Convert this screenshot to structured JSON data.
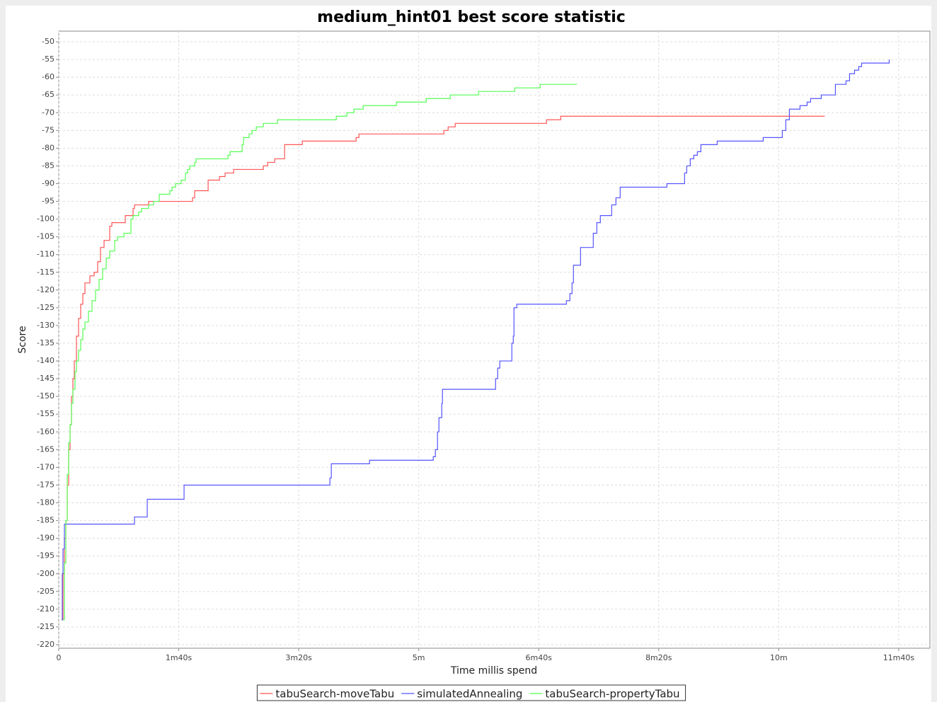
{
  "chart_data": {
    "type": "line",
    "step": true,
    "title": "medium_hint01 best score statistic",
    "xlabel": "Time millis spend",
    "ylabel": "Score",
    "grid": true,
    "legend": "bottom",
    "xlim": [
      0,
      726000
    ],
    "ylim": [
      -221,
      -47
    ],
    "xticks": [
      0,
      {
        "value": 100000,
        "label": "1m40s"
      },
      {
        "value": 200000,
        "label": "3m20s"
      },
      {
        "value": 300000,
        "label": "5m"
      },
      {
        "value": 400000,
        "label": "6m40s"
      },
      {
        "value": 500000,
        "label": "8m20s"
      },
      {
        "value": 600000,
        "label": "10m"
      },
      {
        "value": 700000,
        "label": "11m40s"
      }
    ],
    "yticks": [
      -50,
      -55,
      -60,
      -65,
      -70,
      -75,
      -80,
      -85,
      -90,
      -95,
      -100,
      -105,
      -110,
      -115,
      -120,
      -125,
      -130,
      -135,
      -140,
      -145,
      -150,
      -155,
      -160,
      -165,
      -170,
      -175,
      -180,
      -185,
      -190,
      -195,
      -200,
      -205,
      -210,
      -215,
      -220
    ],
    "series": [
      {
        "name": "tabuSearch-moveTabu",
        "color": "#ff5555",
        "x": [
          2360,
          3540,
          4720,
          5900,
          7080,
          8260,
          9440,
          10620,
          11800,
          12980,
          14750,
          16520,
          18290,
          20060,
          21830,
          25960,
          29500,
          32450,
          34810,
          37760,
          42480,
          44250,
          55460,
          61950,
          63130,
          74930,
          111510,
          113280,
          124490,
          133930,
          138650,
          145730,
          170510,
          174050,
          179950,
          188210,
          202960,
          247800,
          250160,
          320960,
          324500,
          330400,
          406510,
          418310,
          638380
        ],
        "values": [
          -213,
          -200,
          -190,
          -185,
          -175,
          -165,
          -158,
          -150,
          -145,
          -140,
          -133,
          -128,
          -124,
          -121,
          -118,
          -116,
          -115,
          -112,
          -108,
          -106,
          -102,
          -101,
          -99,
          -97,
          -96,
          -95,
          -94,
          -92,
          -89,
          -88,
          -87,
          -86,
          -85,
          -84,
          -83,
          -79,
          -78,
          -77,
          -76,
          -75,
          -74,
          -73,
          -72,
          -71,
          -71
        ]
      },
      {
        "name": "simulatedAnnealing",
        "color": "#5555ff",
        "x": [
          2360,
          2950,
          3540,
          4720,
          63130,
          73750,
          104430,
          225970,
          227150,
          259010,
          312110,
          313880,
          315650,
          316830,
          319190,
          319780,
          364030,
          365800,
          367570,
          377600,
          378780,
          379370,
          381730,
          423030,
          425980,
          427750,
          428930,
          434830,
          445450,
          448400,
          451350,
          460790,
          464330,
          467870,
          506810,
          521560,
          523330,
          526280,
          529230,
          532180,
          535130,
          548700,
          587050,
          602980,
          605930,
          608880,
          617730,
          623630,
          626580,
          635430,
          647230,
          656080,
          659030,
          663160,
          666700,
          669060,
          692070
        ],
        "values": [
          -213,
          -200,
          -193,
          -186,
          -184,
          -179,
          -175,
          -173,
          -169,
          -168,
          -167,
          -165,
          -160,
          -156,
          -152,
          -148,
          -145,
          -142,
          -140,
          -135,
          -133,
          -125,
          -124,
          -123,
          -121,
          -118,
          -113,
          -108,
          -104,
          -101,
          -99,
          -96,
          -94,
          -91,
          -90,
          -87,
          -85,
          -83,
          -82,
          -81,
          -79,
          -78,
          -77,
          -75,
          -72,
          -69,
          -68,
          -67,
          -66,
          -65,
          -62,
          -61,
          -59,
          -58,
          -57,
          -56,
          -55
        ]
      },
      {
        "name": "tabuSearch-propertyTabu",
        "color": "#55ff55",
        "x": [
          3540,
          4720,
          5900,
          7080,
          8260,
          9440,
          10620,
          11800,
          13570,
          14750,
          16520,
          18290,
          20060,
          21830,
          24780,
          27730,
          30680,
          33630,
          36580,
          39530,
          42480,
          46610,
          48970,
          54280,
          60180,
          61950,
          66670,
          69030,
          74930,
          79060,
          83780,
          92630,
          94400,
          97350,
          102070,
          105610,
          107380,
          109150,
          113280,
          114460,
          141010,
          142780,
          152810,
          153990,
          158710,
          161070,
          164610,
          170510,
          182310,
          231280,
          240130,
          246030,
          253700,
          281430,
          306210,
          326270,
          349870,
          379960,
          401200,
          431880
        ],
        "values": [
          -213,
          -197,
          -185,
          -172,
          -163,
          -158,
          -152,
          -148,
          -143,
          -140,
          -137,
          -134,
          -131,
          -129,
          -126,
          -123,
          -120,
          -117,
          -114,
          -111,
          -109,
          -106,
          -105,
          -104,
          -100,
          -99,
          -98,
          -97,
          -96,
          -95,
          -93,
          -92,
          -91,
          -90,
          -89,
          -87,
          -86,
          -85,
          -84,
          -83,
          -82,
          -81,
          -79,
          -77,
          -76,
          -75,
          -74,
          -73,
          -72,
          -71,
          -70,
          -69,
          -68,
          -67,
          -66,
          -65,
          -64,
          -63,
          -62,
          -62
        ]
      }
    ]
  }
}
